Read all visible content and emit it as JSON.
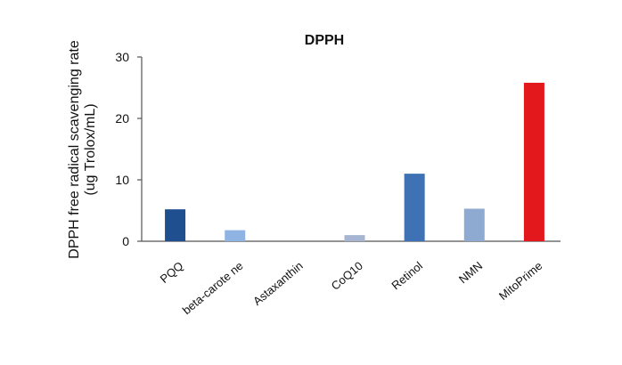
{
  "chart_data": {
    "type": "bar",
    "title": "DPPH",
    "ylabel_line1": "DPPH free radical scavenging rate",
    "ylabel_line2": "(ug Trolox/mL)",
    "xlabel": "",
    "ylim": [
      0,
      30
    ],
    "yticks": [
      "0",
      "10",
      "20",
      "30"
    ],
    "grid": false,
    "categories": [
      "PQQ",
      "beta-carote ne",
      "Astaxanthin",
      "CoQ10",
      "Retinol",
      "NMN",
      "MitoPrime"
    ],
    "values": [
      5.2,
      1.8,
      0,
      1.0,
      11.0,
      5.3,
      25.8
    ],
    "colors": [
      "#1f4f8f",
      "#8fb3e3",
      "#c9d3e3",
      "#a6b6d2",
      "#3f72b4",
      "#8eaad0",
      "#e3181c"
    ]
  }
}
